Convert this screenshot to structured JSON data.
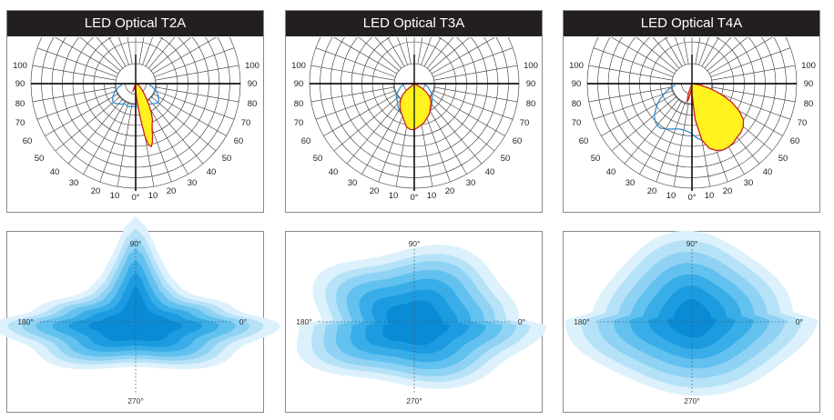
{
  "panels": [
    {
      "title": "LED Optical T2A",
      "polar_chart": {
        "type": "polar",
        "radial_tick_labels": [
          "100",
          "90",
          "80",
          "70",
          "60",
          "50",
          "40",
          "30",
          "20",
          "10",
          "0°"
        ],
        "series": [
          {
            "name": "",
            "color": "#2a86c8",
            "fill": "none",
            "r": [
              0.13,
              0.16,
              0.18,
              0.21,
              0.23,
              0.25,
              0.27,
              0.28,
              0.27,
              0.25,
              0.24,
              0.22,
              0.22,
              0.23,
              0.23,
              0.22,
              0.22,
              0.22,
              0.22,
              0.22,
              0.23,
              0.23,
              0.22,
              0.22,
              0.24,
              0.25,
              0.27,
              0.28,
              0.27,
              0.25,
              0.23,
              0.21,
              0.18,
              0.16,
              0.13
            ],
            "angle_min": -85,
            "angle_max": 85
          },
          {
            "name": "",
            "color": "#cc1f1f",
            "fill": "#fff21f",
            "points": [
              [
                -20,
                0.08
              ],
              [
                -15,
                0.05
              ],
              [
                -10,
                0.04
              ],
              [
                -5,
                0.04
              ],
              [
                0,
                0.05
              ],
              [
                3,
                0.12
              ],
              [
                6,
                0.22
              ],
              [
                8,
                0.35
              ],
              [
                10,
                0.52
              ],
              [
                12,
                0.6
              ],
              [
                14,
                0.62
              ],
              [
                16,
                0.58
              ],
              [
                18,
                0.52
              ],
              [
                20,
                0.46
              ],
              [
                22,
                0.42
              ],
              [
                25,
                0.38
              ],
              [
                28,
                0.32
              ],
              [
                32,
                0.24
              ],
              [
                38,
                0.15
              ],
              [
                45,
                0.09
              ],
              [
                55,
                0.05
              ],
              [
                65,
                0.03
              ]
            ]
          }
        ]
      },
      "iso_chart": {
        "type": "heatmap",
        "axis_labels": {
          "top": "90°",
          "bottom": "270°",
          "left": "180°",
          "right": "0°"
        },
        "levels": [
          {
            "color": "#dcf1fc",
            "xs": 0.52,
            "ys": 0.45
          },
          {
            "color": "#b6e2f8",
            "xs": 0.46,
            "ys": 0.4
          },
          {
            "color": "#8fd2f4",
            "xs": 0.41,
            "ys": 0.36
          },
          {
            "color": "#62c1ef",
            "xs": 0.36,
            "ys": 0.32
          },
          {
            "color": "#38ade8",
            "xs": 0.3,
            "ys": 0.27
          },
          {
            "color": "#1c9be0",
            "xs": 0.24,
            "ys": 0.22
          },
          {
            "color": "#0a8bd6",
            "xs": 0.17,
            "ys": 0.16
          }
        ],
        "shape": "t2"
      }
    },
    {
      "title": "LED Optical T3A",
      "polar_chart": {
        "type": "polar",
        "radial_tick_labels": [
          "100",
          "90",
          "80",
          "70",
          "60",
          "50",
          "40",
          "30",
          "20",
          "10",
          "0°"
        ],
        "series": [
          {
            "name": "",
            "color": "#2a86c8",
            "fill": "none",
            "r": [
              0.1,
              0.12,
              0.14,
              0.15,
              0.17,
              0.19,
              0.21,
              0.22,
              0.23,
              0.25,
              0.27,
              0.29,
              0.31,
              0.32,
              0.33,
              0.33,
              0.33,
              0.33,
              0.33,
              0.33,
              0.33,
              0.32,
              0.31,
              0.3,
              0.28,
              0.26,
              0.24,
              0.22,
              0.21,
              0.19,
              0.17,
              0.15,
              0.14,
              0.12,
              0.1
            ],
            "angle_min": -85,
            "angle_max": 85
          },
          {
            "name": "",
            "color": "#cc1f1f",
            "fill": "#fff21f",
            "points": [
              [
                -50,
                0.1
              ],
              [
                -45,
                0.16
              ],
              [
                -40,
                0.2
              ],
              [
                -35,
                0.24
              ],
              [
                -30,
                0.27
              ],
              [
                -25,
                0.3
              ],
              [
                -20,
                0.33
              ],
              [
                -15,
                0.37
              ],
              [
                -10,
                0.42
              ],
              [
                -5,
                0.44
              ],
              [
                0,
                0.44
              ],
              [
                5,
                0.42
              ],
              [
                10,
                0.4
              ],
              [
                15,
                0.38
              ],
              [
                20,
                0.35
              ],
              [
                25,
                0.33
              ],
              [
                30,
                0.3
              ],
              [
                35,
                0.27
              ],
              [
                40,
                0.25
              ],
              [
                45,
                0.22
              ],
              [
                50,
                0.19
              ],
              [
                55,
                0.14
              ],
              [
                60,
                0.08
              ]
            ]
          }
        ]
      },
      "iso_chart": {
        "type": "heatmap",
        "axis_labels": {
          "top": "90°",
          "bottom": "270°",
          "left": "180°",
          "right": "0°"
        },
        "levels": [
          {
            "color": "#dcf1fc",
            "xs": 0.48,
            "ys": 0.45
          },
          {
            "color": "#b6e2f8",
            "xs": 0.42,
            "ys": 0.4
          },
          {
            "color": "#8fd2f4",
            "xs": 0.37,
            "ys": 0.36
          },
          {
            "color": "#62c1ef",
            "xs": 0.32,
            "ys": 0.31
          },
          {
            "color": "#38ade8",
            "xs": 0.26,
            "ys": 0.26
          },
          {
            "color": "#1c9be0",
            "xs": 0.2,
            "ys": 0.2
          },
          {
            "color": "#0a8bd6",
            "xs": 0.13,
            "ys": 0.14
          }
        ],
        "shape": "t3"
      }
    },
    {
      "title": "LED Optical T4A",
      "polar_chart": {
        "type": "polar",
        "radial_tick_labels": [
          "100",
          "90",
          "80",
          "70",
          "60",
          "50",
          "40",
          "30",
          "20",
          "10",
          "0°"
        ],
        "series": [
          {
            "name": "",
            "color": "#2a86c8",
            "fill": "none",
            "r": [
              0.16,
              0.2,
              0.24,
              0.28,
              0.33,
              0.38,
              0.42,
              0.47,
              0.5,
              0.52,
              0.52,
              0.5,
              0.48,
              0.46,
              0.45,
              0.45,
              0.46,
              0.48,
              0.52,
              0.55,
              0.56,
              0.55,
              0.52,
              0.49,
              0.45,
              0.4,
              0.35,
              0.29,
              0.24,
              0.19,
              0.14,
              0.1,
              0.07,
              0.05,
              0.04
            ],
            "angle_min": -85,
            "angle_max": 85
          },
          {
            "name": "",
            "color": "#cc1f1f",
            "fill": "#fff21f",
            "points": [
              [
                -20,
                0.1
              ],
              [
                -15,
                0.18
              ],
              [
                -12,
                0.15
              ],
              [
                -8,
                0.08
              ],
              [
                -4,
                0.05
              ],
              [
                0,
                0.1
              ],
              [
                5,
                0.34
              ],
              [
                10,
                0.55
              ],
              [
                15,
                0.64
              ],
              [
                20,
                0.68
              ],
              [
                25,
                0.7
              ],
              [
                30,
                0.7
              ],
              [
                35,
                0.69
              ],
              [
                40,
                0.67
              ],
              [
                45,
                0.66
              ],
              [
                50,
                0.64
              ],
              [
                55,
                0.6
              ],
              [
                60,
                0.52
              ],
              [
                65,
                0.42
              ],
              [
                70,
                0.3
              ],
              [
                75,
                0.18
              ],
              [
                80,
                0.08
              ]
            ]
          }
        ]
      },
      "iso_chart": {
        "type": "heatmap",
        "axis_labels": {
          "top": "90°",
          "bottom": "270°",
          "left": "180°",
          "right": "0°"
        },
        "levels": [
          {
            "color": "#dcf1fc",
            "xs": 0.47,
            "ys": 0.47
          },
          {
            "color": "#b6e2f8",
            "xs": 0.41,
            "ys": 0.42
          },
          {
            "color": "#8fd2f4",
            "xs": 0.35,
            "ys": 0.36
          },
          {
            "color": "#62c1ef",
            "xs": 0.29,
            "ys": 0.3
          },
          {
            "color": "#38ade8",
            "xs": 0.23,
            "ys": 0.24
          },
          {
            "color": "#1c9be0",
            "xs": 0.16,
            "ys": 0.18
          },
          {
            "color": "#0a8bd6",
            "xs": 0.09,
            "ys": 0.11
          }
        ],
        "shape": "t4"
      }
    }
  ]
}
